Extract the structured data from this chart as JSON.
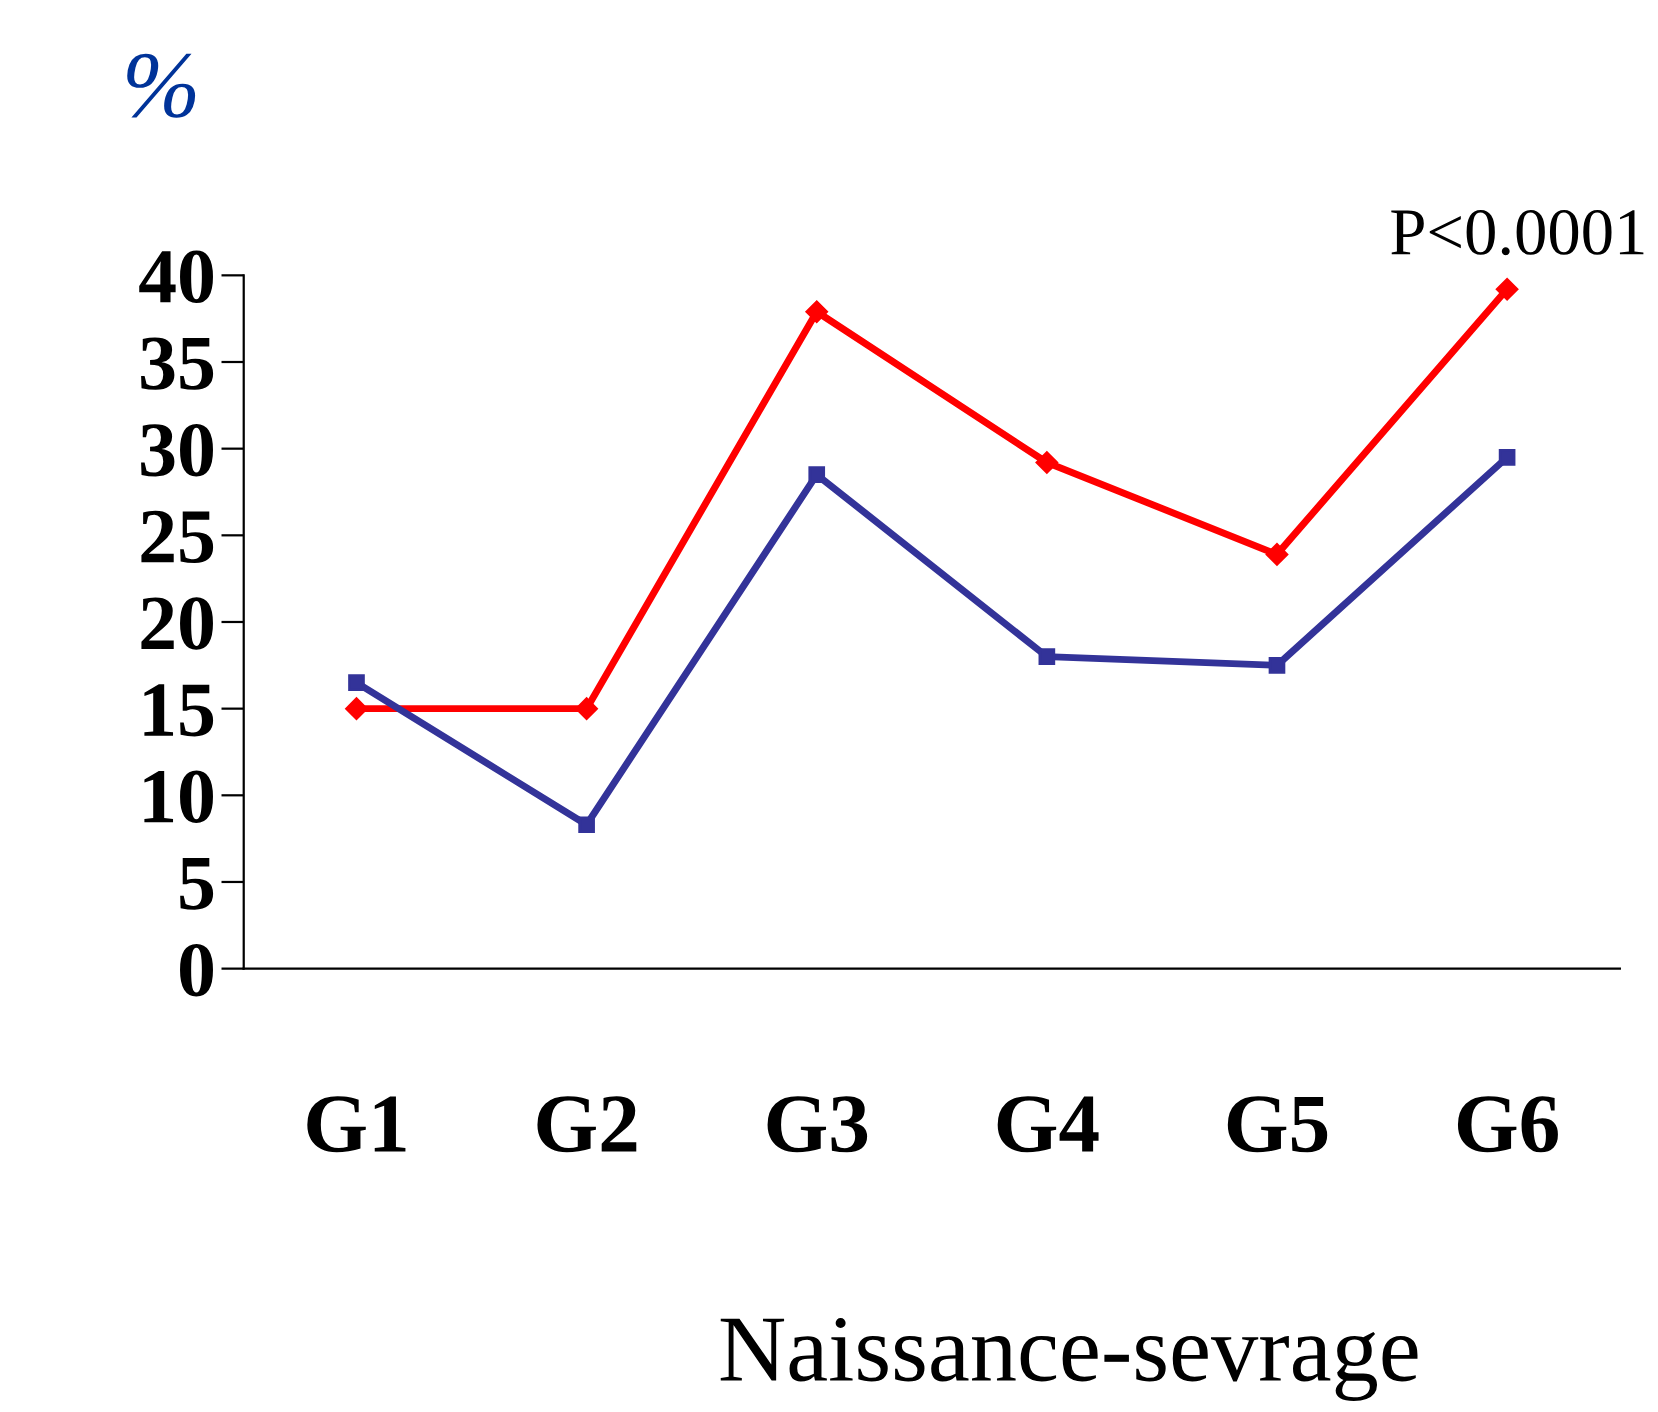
{
  "chart_data": {
    "type": "line",
    "ylabel": "%",
    "xlabel": "Naissance-sevrage",
    "categories": [
      "G1",
      "G2",
      "G3",
      "G4",
      "G5",
      "G6"
    ],
    "series": [
      {
        "color": "#ff0000",
        "marker": "diamond",
        "values": [
          15.0,
          15.0,
          37.9,
          29.2,
          23.9,
          39.2
        ]
      },
      {
        "color": "#333399",
        "marker": "square",
        "values": [
          16.5,
          8.3,
          28.5,
          18.0,
          17.5,
          29.5
        ]
      }
    ],
    "ylim": [
      0,
      40
    ],
    "yticks": [
      0,
      5,
      10,
      15,
      20,
      25,
      30,
      35,
      40
    ],
    "grid": false,
    "line_style": "solid",
    "annotations": [
      "P<0.0001"
    ]
  }
}
